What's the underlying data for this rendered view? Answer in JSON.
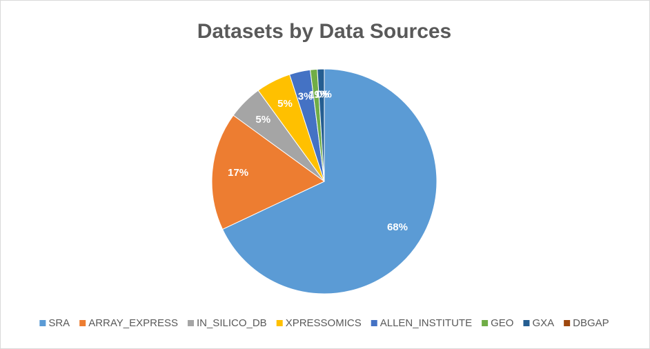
{
  "chart_data": {
    "type": "pie",
    "title": "Datasets by Data Sources",
    "categories": [
      "SRA",
      "ARRAY_EXPRESS",
      "IN_SILICO_DB",
      "XPRESSOMICS",
      "ALLEN_INSTITUTE",
      "GEO",
      "GXA",
      "DBGAP"
    ],
    "values": [
      68,
      17,
      5,
      5,
      3,
      1,
      1,
      0
    ],
    "value_labels": [
      "68%",
      "17%",
      "5%",
      "5%",
      "3%",
      "1%",
      "1%",
      "0%"
    ],
    "colors": [
      "#5b9bd5",
      "#ed7d31",
      "#a5a5a5",
      "#ffc000",
      "#4472c4",
      "#70ad47",
      "#255e91",
      "#9e480e"
    ],
    "legend": "bottom"
  }
}
